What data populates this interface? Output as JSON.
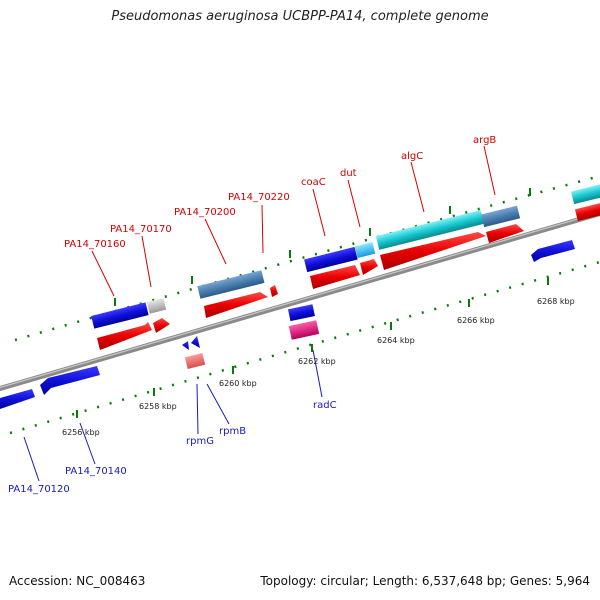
{
  "title": "Pseudomonas aeruginosa UCBPP-PA14, complete genome",
  "footer": {
    "accession": "Accession: NC_008463",
    "summary": "Topology: circular; Length: 6,537,648 bp; Genes: 5,964"
  },
  "colors": {
    "backbone": "#8a8a8a",
    "forward_gene": "#1010d8",
    "rna_red": "#e80000",
    "teal_gene": "#18c8d0",
    "steel_gene": "#4a7fb0",
    "gray_gene": "#b8b8b8",
    "pink_gene": "#e0107a",
    "tick_green": "#0a7a0a",
    "forward_label": "#d40000",
    "reverse_label": "#1a1ab8"
  },
  "scale": {
    "unit": "kbp",
    "ticks": [
      "6256 kbp",
      "6258 kbp",
      "6260 kbp",
      "6262 kbp",
      "6264 kbp",
      "6266 kbp",
      "6268 kbp"
    ]
  },
  "forward_labels": [
    "PA14_70160",
    "PA14_70170",
    "PA14_70200",
    "PA14_70220",
    "coaC",
    "dut",
    "algC",
    "argB"
  ],
  "reverse_labels": [
    "PA14_70120",
    "PA14_70140",
    "rpmG",
    "rpmB",
    "radC"
  ]
}
